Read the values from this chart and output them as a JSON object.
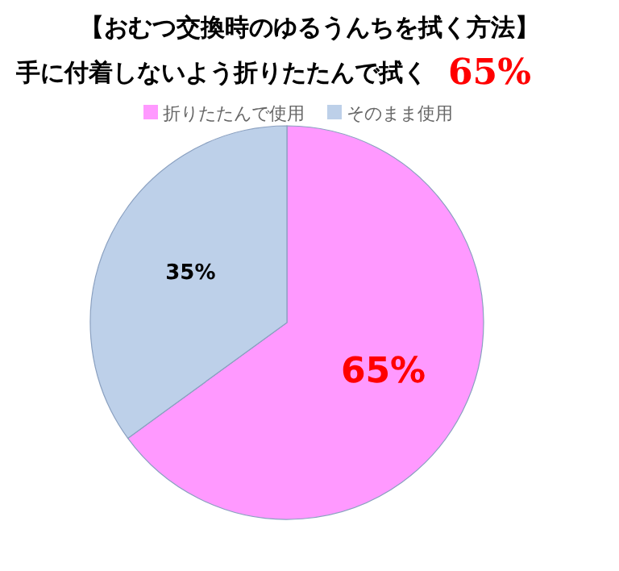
{
  "chart_data": {
    "type": "pie",
    "title": "【おむつ交換時のゆるうんちを拭く方法】",
    "subtitle": "手に付着しないよう折りたたんで拭く",
    "annotations": [
      "65%"
    ],
    "categories": [
      "折りたたんで使用",
      "そのまま使用"
    ],
    "values": [
      65,
      35
    ],
    "colors": [
      "#ff99ff",
      "#bdd0e9"
    ],
    "value_labels": [
      "65%",
      "35%"
    ],
    "legend": "top"
  }
}
